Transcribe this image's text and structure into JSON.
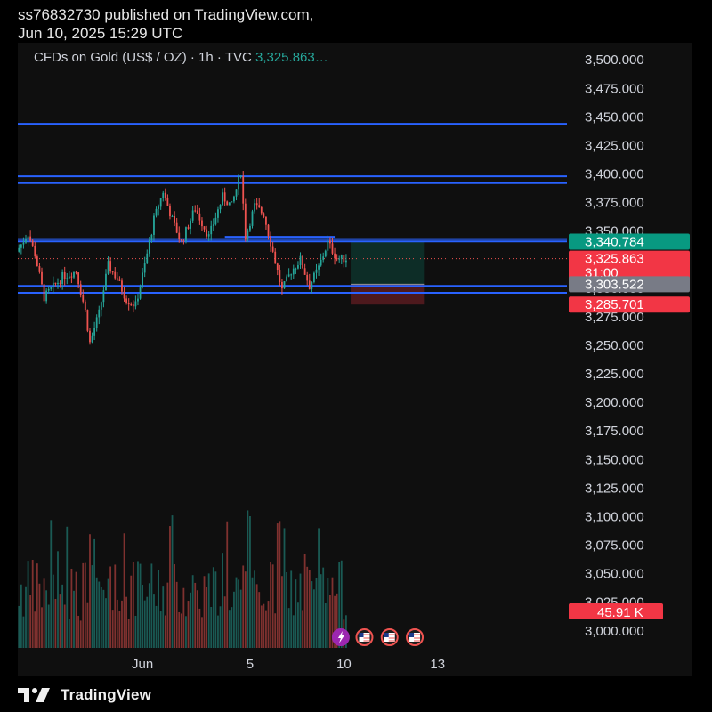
{
  "header": {
    "published_line1": "ss76832730 published on TradingView.com,",
    "published_line2": "Jun 10, 2025 15:29 UTC"
  },
  "symbol": {
    "name": "CFDs on Gold (US$ / OZ)",
    "interval": "1h",
    "source": "TVC",
    "last": "3,325.863…",
    "separator": "·"
  },
  "footer": {
    "brand": "TradingView"
  },
  "colors": {
    "background": "#0f0f0f",
    "up": "#26a69a",
    "down": "#ef5350",
    "hline": "#2962ff",
    "label_green": "#089981",
    "label_red": "#f23645",
    "label_gray": "#787b86",
    "event_purple": "#9c27b0"
  },
  "chart_data": {
    "type": "candlestick",
    "symbol": "CFDs on Gold (US$ / OZ)",
    "interval": "1h",
    "y_axis": {
      "range": [
        2985,
        3515
      ],
      "ticks": [
        3500,
        3475,
        3450,
        3425,
        3400,
        3375,
        3350,
        3325,
        3300,
        3275,
        3250,
        3225,
        3200,
        3175,
        3150,
        3125,
        3100,
        3075,
        3050,
        3025,
        3000
      ],
      "tick_labels": [
        "3,500.000",
        "3,475.000",
        "3,450.000",
        "3,425.000",
        "3,400.000",
        "3,375.000",
        "3,350.000",
        "3,325.000",
        "3,300.000",
        "3,275.000",
        "3,250.000",
        "3,225.000",
        "3,200.000",
        "3,175.000",
        "3,150.000",
        "3,125.000",
        "3,100.000",
        "3,075.000",
        "3,050.000",
        "3,025.000",
        "3,000.000"
      ]
    },
    "x_axis": {
      "ticks": [
        {
          "label": "Jun",
          "bar": 54
        },
        {
          "label": "5",
          "bar": 101
        },
        {
          "label": "10",
          "bar": 142
        },
        {
          "label": "13",
          "bar": 183
        }
      ]
    },
    "bars_visible": 144,
    "bars_span": 240,
    "horizontal_lines": [
      3444,
      3398,
      3392,
      3343,
      3341,
      3302,
      3296
    ],
    "short_segment_lines": [
      {
        "from_bar": 90,
        "to_bar": 138,
        "value": 3345
      }
    ],
    "current_price_line": 3325.863,
    "position": {
      "type": "long",
      "from_bar": 145,
      "to_bar": 177,
      "entry": 3303.522,
      "target": 3340.784,
      "stop": 3285.701
    },
    "price_labels": [
      {
        "value": 3340.784,
        "text": "3,340.784",
        "color": "green"
      },
      {
        "value": 3325.863,
        "text": "3,325.863",
        "sub": "31:00",
        "color": "red"
      },
      {
        "value": 3303.522,
        "text": "3,303.522",
        "color": "gray"
      },
      {
        "value": 3285.701,
        "text": "3,285.701",
        "color": "red"
      }
    ],
    "volume_label": {
      "text": "45.91 K",
      "color": "red"
    },
    "path_anchors": [
      [
        0,
        3332
      ],
      [
        5,
        3348
      ],
      [
        8,
        3330
      ],
      [
        12,
        3292
      ],
      [
        20,
        3310
      ],
      [
        26,
        3315
      ],
      [
        30,
        3280
      ],
      [
        32,
        3252
      ],
      [
        36,
        3278
      ],
      [
        40,
        3320
      ],
      [
        44,
        3308
      ],
      [
        48,
        3290
      ],
      [
        52,
        3285
      ],
      [
        56,
        3320
      ],
      [
        60,
        3360
      ],
      [
        64,
        3385
      ],
      [
        68,
        3360
      ],
      [
        72,
        3340
      ],
      [
        78,
        3370
      ],
      [
        84,
        3345
      ],
      [
        90,
        3380
      ],
      [
        94,
        3372
      ],
      [
        98,
        3402
      ],
      [
        100,
        3345
      ],
      [
        104,
        3372
      ],
      [
        108,
        3365
      ],
      [
        112,
        3332
      ],
      [
        116,
        3298
      ],
      [
        120,
        3315
      ],
      [
        124,
        3325
      ],
      [
        128,
        3302
      ],
      [
        132,
        3318
      ],
      [
        136,
        3340
      ],
      [
        140,
        3326
      ],
      [
        143,
        3326
      ]
    ]
  }
}
